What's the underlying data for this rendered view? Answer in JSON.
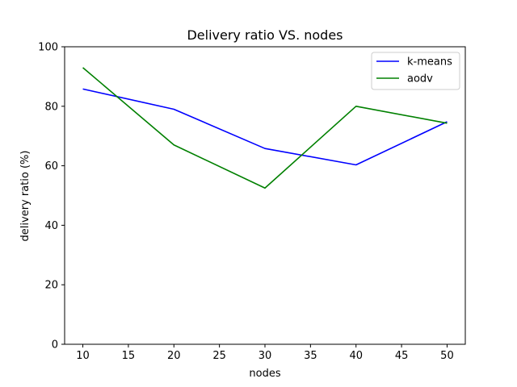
{
  "chart_data": {
    "type": "line",
    "title": "Delivery ratio VS. nodes",
    "xlabel": "nodes",
    "ylabel": "delivery ratio (%)",
    "x": [
      10,
      20,
      30,
      40,
      50
    ],
    "xlim": [
      8,
      52
    ],
    "ylim": [
      0,
      100
    ],
    "xticks": [
      10,
      15,
      20,
      25,
      30,
      35,
      40,
      45,
      50
    ],
    "yticks": [
      0,
      20,
      40,
      60,
      80,
      100
    ],
    "grid": false,
    "legend_position": "top-right",
    "series": [
      {
        "name": "k-means",
        "color": "#0000ff",
        "values": [
          85.8,
          79.0,
          65.8,
          60.3,
          74.8
        ]
      },
      {
        "name": "aodv",
        "color": "#008000",
        "values": [
          93.0,
          67.0,
          52.5,
          80.0,
          74.3
        ]
      }
    ]
  }
}
